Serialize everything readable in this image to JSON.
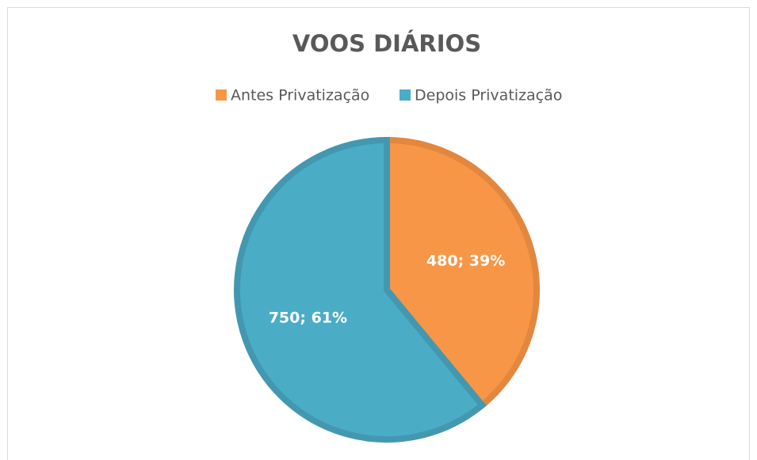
{
  "chart_data": {
    "type": "pie",
    "title": "VOOS DIÁRIOS",
    "categories": [
      "Antes Privatização",
      "Depois Privatização"
    ],
    "values": [
      480,
      750
    ],
    "value_labels": [
      "480; 39%",
      "750; 61%"
    ],
    "colors": [
      "#f79646",
      "#4bacc6"
    ],
    "edge_colors": [
      "#e3873f",
      "#4398b0"
    ],
    "legend": "top"
  }
}
